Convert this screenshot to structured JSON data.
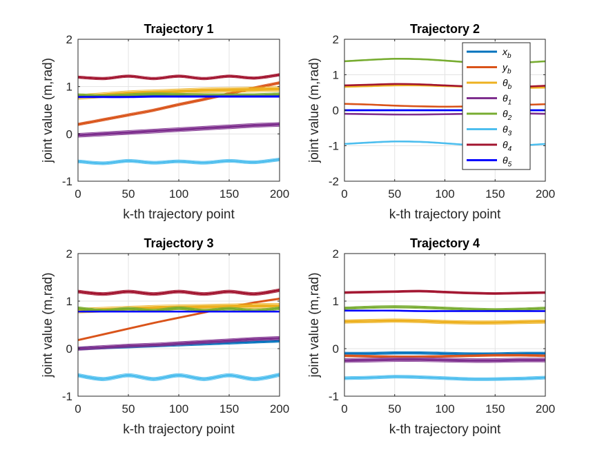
{
  "figure": {
    "title": ""
  },
  "chart_data": [
    {
      "type": "line",
      "title": "Trajectory 1",
      "xlabel": "k-th trajectory point",
      "ylabel": "joint value (m,rad)",
      "xlim": [
        0,
        200
      ],
      "ylim": [
        -1,
        2
      ],
      "xticks": [
        0,
        50,
        100,
        150,
        200
      ],
      "yticks": [
        -1,
        0,
        1,
        2
      ],
      "grid": true,
      "legend": null,
      "x": [
        0,
        25,
        50,
        75,
        100,
        125,
        150,
        175,
        200
      ],
      "series": [
        {
          "name": "x_b",
          "color": "#0072BD",
          "band": 0.03,
          "values": [
            0.8,
            0.8,
            0.8,
            0.8,
            0.8,
            0.8,
            0.8,
            0.8,
            0.8
          ]
        },
        {
          "name": "y_b",
          "color": "#D95319",
          "band": 0.05,
          "values": [
            0.2,
            0.3,
            0.4,
            0.5,
            0.62,
            0.73,
            0.85,
            0.97,
            1.08
          ]
        },
        {
          "name": "θ_b",
          "color": "#EDB120",
          "band": 0.1,
          "values": [
            0.78,
            0.82,
            0.86,
            0.88,
            0.9,
            0.92,
            0.93,
            0.94,
            0.95
          ]
        },
        {
          "name": "θ_1",
          "color": "#7E2F8E",
          "band": 0.08,
          "values": [
            -0.03,
            0.0,
            0.03,
            0.06,
            0.09,
            0.12,
            0.15,
            0.18,
            0.2
          ]
        },
        {
          "name": "θ_2",
          "color": "#77AC30",
          "band": 0.06,
          "values": [
            0.82,
            0.8,
            0.82,
            0.84,
            0.83,
            0.82,
            0.82,
            0.82,
            0.84
          ]
        },
        {
          "name": "θ_3",
          "color": "#4DBEEE",
          "band": 0.06,
          "values": [
            -0.58,
            -0.62,
            -0.57,
            -0.61,
            -0.58,
            -0.61,
            -0.57,
            -0.6,
            -0.54
          ]
        },
        {
          "name": "θ_4",
          "color": "#A2142F",
          "band": 0.05,
          "values": [
            1.2,
            1.17,
            1.22,
            1.17,
            1.22,
            1.17,
            1.22,
            1.18,
            1.25
          ]
        },
        {
          "name": "θ_5",
          "color": "#0000FF",
          "band": 0.03,
          "values": [
            0.78,
            0.78,
            0.78,
            0.79,
            0.79,
            0.79,
            0.79,
            0.79,
            0.79
          ]
        }
      ]
    },
    {
      "type": "line",
      "title": "Trajectory 2",
      "xlabel": "k-th trajectory point",
      "ylabel": "joint value (m,rad)",
      "xlim": [
        0,
        200
      ],
      "ylim": [
        -2,
        2
      ],
      "xticks": [
        0,
        50,
        100,
        150,
        200
      ],
      "yticks": [
        -2,
        -1,
        0,
        1,
        2
      ],
      "grid": true,
      "legend": "top-right",
      "x": [
        0,
        25,
        50,
        75,
        100,
        125,
        150,
        175,
        200
      ],
      "series": [
        {
          "name": "x_b",
          "color": "#0072BD",
          "band": 0.01,
          "values": [
            0.0,
            0.0,
            0.0,
            0.0,
            0.0,
            0.0,
            0.0,
            0.0,
            0.0
          ]
        },
        {
          "name": "y_b",
          "color": "#D95319",
          "band": 0.01,
          "values": [
            0.18,
            0.16,
            0.13,
            0.11,
            0.1,
            0.11,
            0.13,
            0.15,
            0.17
          ]
        },
        {
          "name": "θ_b",
          "color": "#EDB120",
          "band": 0.01,
          "values": [
            0.66,
            0.68,
            0.7,
            0.7,
            0.68,
            0.66,
            0.64,
            0.63,
            0.64
          ]
        },
        {
          "name": "θ_1",
          "color": "#7E2F8E",
          "band": 0.02,
          "values": [
            -0.1,
            -0.11,
            -0.12,
            -0.12,
            -0.11,
            -0.1,
            -0.09,
            -0.09,
            -0.1
          ]
        },
        {
          "name": "θ_2",
          "color": "#77AC30",
          "band": 0.01,
          "values": [
            1.38,
            1.42,
            1.45,
            1.44,
            1.4,
            1.35,
            1.33,
            1.34,
            1.38
          ]
        },
        {
          "name": "θ_3",
          "color": "#4DBEEE",
          "band": 0.01,
          "values": [
            -0.95,
            -0.91,
            -0.88,
            -0.89,
            -0.93,
            -0.98,
            -1.0,
            -0.99,
            -0.95
          ]
        },
        {
          "name": "θ_4",
          "color": "#A2142F",
          "band": 0.03,
          "values": [
            0.7,
            0.72,
            0.74,
            0.73,
            0.7,
            0.67,
            0.65,
            0.66,
            0.69
          ]
        },
        {
          "name": "θ_5",
          "color": "#0000FF",
          "band": 0.01,
          "values": [
            0.0,
            0.0,
            0.0,
            0.0,
            0.0,
            0.0,
            0.0,
            0.0,
            0.0
          ]
        }
      ]
    },
    {
      "type": "line",
      "title": "Trajectory 3",
      "xlabel": "k-th trajectory point",
      "ylabel": "joint value (m,rad)",
      "xlim": [
        0,
        200
      ],
      "ylim": [
        -1,
        2
      ],
      "xticks": [
        0,
        50,
        100,
        150,
        200
      ],
      "yticks": [
        -1,
        0,
        1,
        2
      ],
      "grid": true,
      "legend": null,
      "x": [
        0,
        25,
        50,
        75,
        100,
        125,
        150,
        175,
        200
      ],
      "series": [
        {
          "name": "x_b",
          "color": "#0072BD",
          "band": 0.05,
          "values": [
            0.0,
            0.02,
            0.04,
            0.06,
            0.08,
            0.1,
            0.12,
            0.14,
            0.16
          ]
        },
        {
          "name": "y_b",
          "color": "#D95319",
          "band": 0.03,
          "values": [
            0.18,
            0.3,
            0.42,
            0.54,
            0.65,
            0.76,
            0.87,
            0.97,
            1.05
          ]
        },
        {
          "name": "θ_b",
          "color": "#EDB120",
          "band": 0.1,
          "values": [
            0.8,
            0.82,
            0.84,
            0.86,
            0.87,
            0.88,
            0.89,
            0.9,
            0.9
          ]
        },
        {
          "name": "θ_1",
          "color": "#7E2F8E",
          "band": 0.07,
          "values": [
            0.0,
            0.03,
            0.06,
            0.08,
            0.11,
            0.14,
            0.17,
            0.2,
            0.22
          ]
        },
        {
          "name": "θ_2",
          "color": "#77AC30",
          "band": 0.06,
          "values": [
            0.85,
            0.8,
            0.84,
            0.8,
            0.85,
            0.8,
            0.84,
            0.8,
            0.85
          ]
        },
        {
          "name": "θ_3",
          "color": "#4DBEEE",
          "band": 0.07,
          "values": [
            -0.56,
            -0.64,
            -0.56,
            -0.64,
            -0.56,
            -0.64,
            -0.56,
            -0.64,
            -0.55
          ]
        },
        {
          "name": "θ_4",
          "color": "#A2142F",
          "band": 0.06,
          "values": [
            1.2,
            1.15,
            1.2,
            1.15,
            1.2,
            1.15,
            1.2,
            1.15,
            1.23
          ]
        },
        {
          "name": "θ_5",
          "color": "#0000FF",
          "band": 0.02,
          "values": [
            0.78,
            0.78,
            0.78,
            0.78,
            0.78,
            0.78,
            0.78,
            0.78,
            0.78
          ]
        }
      ]
    },
    {
      "type": "line",
      "title": "Trajectory 4",
      "xlabel": "k-th trajectory point",
      "ylabel": "joint value (m,rad)",
      "xlim": [
        0,
        200
      ],
      "ylim": [
        -1,
        2
      ],
      "xticks": [
        0,
        50,
        100,
        150,
        200
      ],
      "yticks": [
        -1,
        0,
        1,
        2
      ],
      "grid": true,
      "legend": null,
      "x": [
        0,
        25,
        50,
        75,
        100,
        125,
        150,
        175,
        200
      ],
      "series": [
        {
          "name": "x_b",
          "color": "#0072BD",
          "band": 0.05,
          "values": [
            -0.1,
            -0.1,
            -0.09,
            -0.09,
            -0.1,
            -0.11,
            -0.11,
            -0.1,
            -0.1
          ]
        },
        {
          "name": "y_b",
          "color": "#D95319",
          "band": 0.04,
          "values": [
            -0.15,
            -0.16,
            -0.17,
            -0.17,
            -0.16,
            -0.15,
            -0.14,
            -0.14,
            -0.15
          ]
        },
        {
          "name": "θ_b",
          "color": "#EDB120",
          "band": 0.07,
          "values": [
            0.57,
            0.58,
            0.59,
            0.58,
            0.56,
            0.55,
            0.55,
            0.56,
            0.57
          ]
        },
        {
          "name": "θ_1",
          "color": "#7E2F8E",
          "band": 0.08,
          "values": [
            -0.25,
            -0.24,
            -0.23,
            -0.23,
            -0.24,
            -0.25,
            -0.25,
            -0.24,
            -0.24
          ]
        },
        {
          "name": "θ_2",
          "color": "#77AC30",
          "band": 0.05,
          "values": [
            0.85,
            0.87,
            0.88,
            0.87,
            0.85,
            0.83,
            0.82,
            0.83,
            0.85
          ]
        },
        {
          "name": "θ_3",
          "color": "#4DBEEE",
          "band": 0.06,
          "values": [
            -0.62,
            -0.61,
            -0.59,
            -0.6,
            -0.62,
            -0.64,
            -0.64,
            -0.63,
            -0.61
          ]
        },
        {
          "name": "θ_4",
          "color": "#A2142F",
          "band": 0.04,
          "values": [
            1.18,
            1.19,
            1.2,
            1.21,
            1.19,
            1.17,
            1.16,
            1.17,
            1.18
          ]
        },
        {
          "name": "θ_5",
          "color": "#0000FF",
          "band": 0.02,
          "values": [
            0.8,
            0.8,
            0.8,
            0.79,
            0.79,
            0.79,
            0.79,
            0.79,
            0.79
          ]
        }
      ]
    }
  ]
}
